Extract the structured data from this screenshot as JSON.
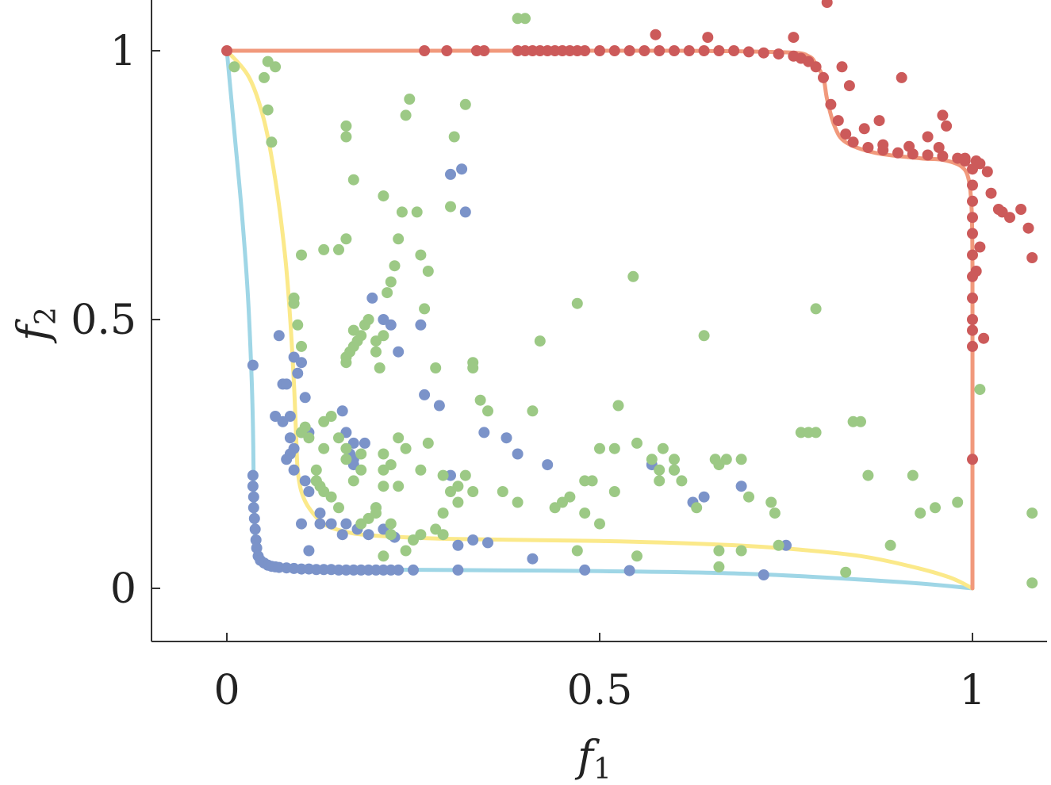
{
  "chart_data": {
    "type": "scatter",
    "title": "",
    "xlabel": "f",
    "xlabel_sub": "1",
    "ylabel": "f",
    "ylabel_sub": "2",
    "xlim": [
      -0.1,
      1.1
    ],
    "ylim": [
      -0.1,
      1.1
    ],
    "xticks": [
      0,
      0.5,
      1
    ],
    "xtick_labels": [
      "0",
      "0.5",
      "1"
    ],
    "yticks": [
      0,
      0.5,
      1
    ],
    "ytick_labels": [
      "0",
      "0.5",
      "1"
    ],
    "grid": false,
    "legend": "none",
    "colors": {
      "blue_points": "#7b93c9",
      "green_points": "#9cc985",
      "red_points": "#cc5a5a",
      "cyan_curve": "#9fd6e6",
      "yellow_curve": "#fbe98a",
      "salmon_curve": "#f1997c",
      "axis": "#333333"
    },
    "curves": [
      {
        "name": "cyan-front",
        "color": "#9fd6e6",
        "x": [
          0,
          0.01,
          0.02,
          0.028,
          0.033,
          0.035,
          0.036,
          0.037,
          0.038,
          0.04,
          0.045,
          0.055,
          0.07,
          0.1,
          0.15,
          0.2,
          0.3,
          0.5,
          0.7,
          0.9,
          1.0
        ],
        "y": [
          1,
          0.85,
          0.7,
          0.55,
          0.4,
          0.3,
          0.2,
          0.12,
          0.09,
          0.07,
          0.055,
          0.045,
          0.04,
          0.037,
          0.036,
          0.035,
          0.034,
          0.032,
          0.027,
          0.012,
          0
        ]
      },
      {
        "name": "yellow-front",
        "color": "#fbe98a",
        "x": [
          0,
          0.03,
          0.05,
          0.065,
          0.078,
          0.085,
          0.09,
          0.093,
          0.095,
          0.1,
          0.11,
          0.13,
          0.16,
          0.2,
          0.3,
          0.5,
          0.65,
          0.75,
          0.85,
          0.92,
          0.97,
          1.0
        ],
        "y": [
          1,
          0.95,
          0.87,
          0.76,
          0.62,
          0.5,
          0.38,
          0.28,
          0.22,
          0.18,
          0.15,
          0.12,
          0.105,
          0.098,
          0.092,
          0.088,
          0.082,
          0.074,
          0.06,
          0.04,
          0.02,
          0
        ]
      },
      {
        "name": "salmon-front",
        "color": "#f1997c",
        "x": [
          0,
          0.3,
          0.6,
          0.75,
          0.78,
          0.79,
          0.8,
          0.805,
          0.815,
          0.83,
          0.87,
          0.93,
          0.96,
          0.985,
          0.995,
          0.999,
          1.0,
          1.0,
          1.0
        ],
        "y": [
          1,
          1,
          1,
          0.997,
          0.99,
          0.975,
          0.95,
          0.91,
          0.86,
          0.83,
          0.81,
          0.8,
          0.797,
          0.785,
          0.76,
          0.7,
          0.6,
          0.3,
          0
        ]
      }
    ],
    "series": [
      {
        "name": "red",
        "color": "#cc5a5a",
        "x": [
          0,
          0.265,
          0.295,
          0.335,
          0.345,
          0.39,
          0.4,
          0.41,
          0.42,
          0.43,
          0.44,
          0.45,
          0.46,
          0.47,
          0.48,
          0.5,
          0.52,
          0.54,
          0.56,
          0.58,
          0.6,
          0.62,
          0.64,
          0.66,
          0.68,
          0.7,
          0.72,
          0.74,
          0.76,
          0.77,
          0.78,
          0.79,
          0.8,
          0.81,
          0.82,
          0.83,
          0.84,
          0.86,
          0.88,
          0.9,
          0.92,
          0.94,
          0.96,
          0.98,
          0.99,
          1.0,
          1.0,
          1.0,
          1.0,
          1.0,
          1.0,
          1.0,
          1.0,
          1.0,
          1.0,
          1.0,
          1.0,
          0.575,
          0.645,
          0.76,
          0.805,
          0.825,
          0.835,
          0.855,
          0.875,
          0.88,
          0.905,
          0.915,
          0.94,
          0.955,
          0.965,
          0.96,
          0.99,
          1.005,
          1.01,
          1.02,
          1.025,
          1.035,
          1.04,
          1.05,
          1.065,
          1.075,
          1.08,
          1.01,
          1.005,
          1.015
        ],
        "y": [
          1,
          1,
          1,
          1,
          1,
          1,
          1,
          1,
          1,
          1,
          1,
          1,
          1,
          1,
          1,
          1,
          1,
          1,
          1,
          1,
          1,
          1,
          1,
          1,
          1,
          0.998,
          0.996,
          0.994,
          0.99,
          0.986,
          0.98,
          0.97,
          0.95,
          0.9,
          0.87,
          0.845,
          0.83,
          0.82,
          0.815,
          0.81,
          0.808,
          0.806,
          0.804,
          0.8,
          0.795,
          0.78,
          0.75,
          0.72,
          0.69,
          0.66,
          0.62,
          0.58,
          0.54,
          0.5,
          0.48,
          0.45,
          0.24,
          1.03,
          1.025,
          1.025,
          1.09,
          0.97,
          0.935,
          0.855,
          0.87,
          0.825,
          0.95,
          0.822,
          0.84,
          0.82,
          0.86,
          0.88,
          0.8,
          0.795,
          0.79,
          0.775,
          0.735,
          0.705,
          0.7,
          0.69,
          0.705,
          0.67,
          0.615,
          0.635,
          0.59,
          0.465
        ],
        "note": "",
        "size": 7
      },
      {
        "name": "blue",
        "color": "#7b93c9",
        "x": [
          0.035,
          0.035,
          0.036,
          0.036,
          0.037,
          0.038,
          0.039,
          0.04,
          0.042,
          0.045,
          0.05,
          0.055,
          0.06,
          0.065,
          0.07,
          0.08,
          0.09,
          0.1,
          0.11,
          0.12,
          0.13,
          0.14,
          0.15,
          0.16,
          0.17,
          0.18,
          0.19,
          0.2,
          0.21,
          0.22,
          0.23,
          0.25,
          0.31,
          0.48,
          0.54,
          0.72,
          0.035,
          0.07,
          0.075,
          0.08,
          0.085,
          0.095,
          0.09,
          0.1,
          0.105,
          0.11,
          0.1,
          0.09,
          0.085,
          0.08,
          0.075,
          0.065,
          0.085,
          0.09,
          0.105,
          0.11,
          0.125,
          0.14,
          0.155,
          0.16,
          0.175,
          0.19,
          0.21,
          0.22,
          0.225,
          0.265,
          0.285,
          0.3,
          0.31,
          0.345,
          0.375,
          0.39,
          0.43,
          0.41,
          0.32,
          0.57,
          0.6,
          0.625,
          0.64,
          0.69,
          0.75,
          0.1,
          0.11,
          0.125,
          0.2,
          0.165,
          0.17,
          0.22,
          0.3,
          0.315,
          0.33,
          0.35,
          0.17,
          0.17,
          0.195,
          0.155,
          0.16,
          0.185,
          0.21,
          0.26,
          0.23
        ],
        "y": [
          0.21,
          0.19,
          0.17,
          0.15,
          0.13,
          0.11,
          0.09,
          0.075,
          0.06,
          0.052,
          0.047,
          0.043,
          0.041,
          0.04,
          0.039,
          0.038,
          0.037,
          0.036,
          0.036,
          0.035,
          0.035,
          0.035,
          0.034,
          0.034,
          0.034,
          0.034,
          0.034,
          0.034,
          0.034,
          0.034,
          0.034,
          0.034,
          0.034,
          0.034,
          0.033,
          0.025,
          0.415,
          0.47,
          0.38,
          0.38,
          0.32,
          0.4,
          0.43,
          0.42,
          0.355,
          0.29,
          0.29,
          0.26,
          0.25,
          0.24,
          0.31,
          0.32,
          0.28,
          0.22,
          0.2,
          0.18,
          0.14,
          0.12,
          0.1,
          0.12,
          0.11,
          0.1,
          0.11,
          0.1,
          0.095,
          0.36,
          0.34,
          0.21,
          0.08,
          0.29,
          0.28,
          0.25,
          0.23,
          0.055,
          0.7,
          0.23,
          0.22,
          0.16,
          0.17,
          0.19,
          0.08,
          0.12,
          0.07,
          0.12,
          0.15,
          0.25,
          0.27,
          0.49,
          0.77,
          0.78,
          0.09,
          0.085,
          0.23,
          0.24,
          0.54,
          0.33,
          0.29,
          0.27,
          0.5,
          0.49,
          0.44
        ],
        "size": 7
      },
      {
        "name": "green",
        "color": "#9cc985",
        "x": [
          0.01,
          0.055,
          0.05,
          0.055,
          0.06,
          0.065,
          0.1,
          0.09,
          0.095,
          0.09,
          0.1,
          0.1,
          0.105,
          0.11,
          0.12,
          0.12,
          0.125,
          0.13,
          0.14,
          0.15,
          0.16,
          0.16,
          0.16,
          0.165,
          0.17,
          0.17,
          0.175,
          0.18,
          0.185,
          0.19,
          0.2,
          0.2,
          0.205,
          0.21,
          0.215,
          0.22,
          0.225,
          0.23,
          0.235,
          0.24,
          0.245,
          0.255,
          0.26,
          0.265,
          0.27,
          0.28,
          0.29,
          0.3,
          0.305,
          0.32,
          0.33,
          0.33,
          0.34,
          0.35,
          0.37,
          0.39,
          0.4,
          0.41,
          0.42,
          0.44,
          0.45,
          0.46,
          0.47,
          0.48,
          0.49,
          0.5,
          0.52,
          0.525,
          0.545,
          0.55,
          0.57,
          0.58,
          0.585,
          0.6,
          0.6,
          0.61,
          0.63,
          0.64,
          0.655,
          0.66,
          0.67,
          0.69,
          0.7,
          0.73,
          0.735,
          0.77,
          0.78,
          0.79,
          0.79,
          0.84,
          0.85,
          0.86,
          0.92,
          0.93,
          0.95,
          0.98,
          1.01,
          1.08,
          1.08,
          0.39,
          0.25,
          0.22,
          0.2,
          0.16,
          0.16,
          0.15,
          0.16,
          0.17,
          0.21,
          0.23,
          0.27,
          0.29,
          0.31,
          0.32,
          0.31,
          0.3,
          0.29,
          0.28,
          0.26,
          0.24,
          0.22,
          0.2,
          0.18,
          0.17,
          0.19,
          0.15,
          0.24,
          0.33,
          0.55,
          0.47,
          0.66,
          0.83,
          0.89,
          0.21,
          0.18,
          0.16,
          0.13,
          0.12,
          0.13,
          0.14,
          0.16,
          0.18,
          0.21,
          0.13,
          0.23,
          0.22,
          0.21,
          0.26,
          0.21,
          0.48,
          0.5,
          0.52,
          0.58,
          0.66,
          0.74,
          0.69
        ],
        "y": [
          0.97,
          0.98,
          0.95,
          0.89,
          0.83,
          0.97,
          0.62,
          0.53,
          0.49,
          0.54,
          0.45,
          0.29,
          0.3,
          0.28,
          0.22,
          0.2,
          0.19,
          0.18,
          0.17,
          0.15,
          0.42,
          0.43,
          0.43,
          0.44,
          0.45,
          0.48,
          0.46,
          0.47,
          0.49,
          0.5,
          0.46,
          0.44,
          0.41,
          0.47,
          0.55,
          0.57,
          0.6,
          0.65,
          0.7,
          0.88,
          0.91,
          0.7,
          0.62,
          0.52,
          0.59,
          0.41,
          0.21,
          0.71,
          0.84,
          0.9,
          0.42,
          0.41,
          0.35,
          0.33,
          0.18,
          0.16,
          1.06,
          0.33,
          0.46,
          0.15,
          0.16,
          0.17,
          0.53,
          0.2,
          0.2,
          0.26,
          0.26,
          0.34,
          0.58,
          0.27,
          0.24,
          0.22,
          0.26,
          0.24,
          0.22,
          0.2,
          0.15,
          0.47,
          0.24,
          0.23,
          0.24,
          0.24,
          0.17,
          0.16,
          0.14,
          0.29,
          0.29,
          0.29,
          0.52,
          0.31,
          0.31,
          0.21,
          0.21,
          0.14,
          0.15,
          0.16,
          0.37,
          0.14,
          0.01,
          1.06,
          0.09,
          0.1,
          0.15,
          0.86,
          0.84,
          0.63,
          0.65,
          0.76,
          0.73,
          0.28,
          0.27,
          0.14,
          0.16,
          0.21,
          0.19,
          0.18,
          0.1,
          0.11,
          0.1,
          0.07,
          0.12,
          0.14,
          0.12,
          0.2,
          0.13,
          0.28,
          0.26,
          0.18,
          0.06,
          0.07,
          0.04,
          0.03,
          0.08,
          0.06,
          0.22,
          0.24,
          0.26,
          0.2,
          0.31,
          0.32,
          0.26,
          0.25,
          0.22,
          0.63,
          0.19,
          0.23,
          0.25,
          0.22,
          0.19,
          0.14,
          0.12,
          0.18,
          0.2,
          0.07,
          0.08,
          0.07
        ],
        "size": 7
      }
    ]
  }
}
